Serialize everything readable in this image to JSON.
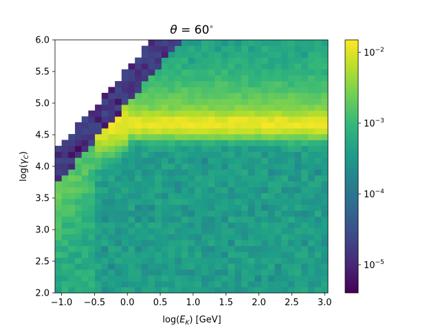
{
  "chart_data": {
    "type": "heatmap",
    "title_math": {
      "symbol": "θ",
      "equals": " = ",
      "value": "60",
      "superscript": "∘"
    },
    "xlabel": {
      "prefix": "log(",
      "symbol": "E",
      "subscript": "K",
      "suffix": ") [GeV]"
    },
    "ylabel": {
      "prefix": "log(",
      "symbol": "γ",
      "subscript": "C",
      "suffix": ")"
    },
    "xlim": [
      -1.1,
      3.05
    ],
    "ylim": [
      2.0,
      6.0
    ],
    "x_ticks": [
      {
        "value": -1.0,
        "label": "−1.0"
      },
      {
        "value": -0.5,
        "label": "−0.5"
      },
      {
        "value": 0.0,
        "label": "0.0"
      },
      {
        "value": 0.5,
        "label": "0.5"
      },
      {
        "value": 1.0,
        "label": "1.0"
      },
      {
        "value": 1.5,
        "label": "1.5"
      },
      {
        "value": 2.0,
        "label": "2.0"
      },
      {
        "value": 2.5,
        "label": "2.5"
      },
      {
        "value": 3.0,
        "label": "3.0"
      }
    ],
    "y_ticks": [
      {
        "value": 2.0,
        "label": "2.0"
      },
      {
        "value": 2.5,
        "label": "2.5"
      },
      {
        "value": 3.0,
        "label": "3.0"
      },
      {
        "value": 3.5,
        "label": "3.5"
      },
      {
        "value": 4.0,
        "label": "4.0"
      },
      {
        "value": 4.5,
        "label": "4.5"
      },
      {
        "value": 5.0,
        "label": "5.0"
      },
      {
        "value": 5.5,
        "label": "5.5"
      },
      {
        "value": 6.0,
        "label": "6.0"
      }
    ],
    "grid": false,
    "colorscale": {
      "name": "viridis",
      "scale": "log",
      "range": [
        4e-06,
        0.015
      ],
      "stops": [
        "#440154",
        "#482777",
        "#3e4989",
        "#31688e",
        "#26828e",
        "#1f9e89",
        "#35b779",
        "#6ece58",
        "#b5de2b",
        "#fde725"
      ],
      "ticks": [
        {
          "value": 1e-05,
          "base": "10",
          "exp": "−5"
        },
        {
          "value": 0.0001,
          "base": "10",
          "exp": "−4"
        },
        {
          "value": 0.001,
          "base": "10",
          "exp": "−3"
        },
        {
          "value": 0.01,
          "base": "10",
          "exp": "−2"
        }
      ]
    },
    "bins": {
      "x_count": 41,
      "y_count": 43
    },
    "value_model": {
      "band_center_log_gamma": 4.68,
      "band_peak": 0.0115,
      "threshold_log_ek": -0.5,
      "background": 0.0004,
      "upper_cutoff_line": {
        "slope_per_log_ek": 1.2,
        "intercept": 5.0
      }
    }
  }
}
